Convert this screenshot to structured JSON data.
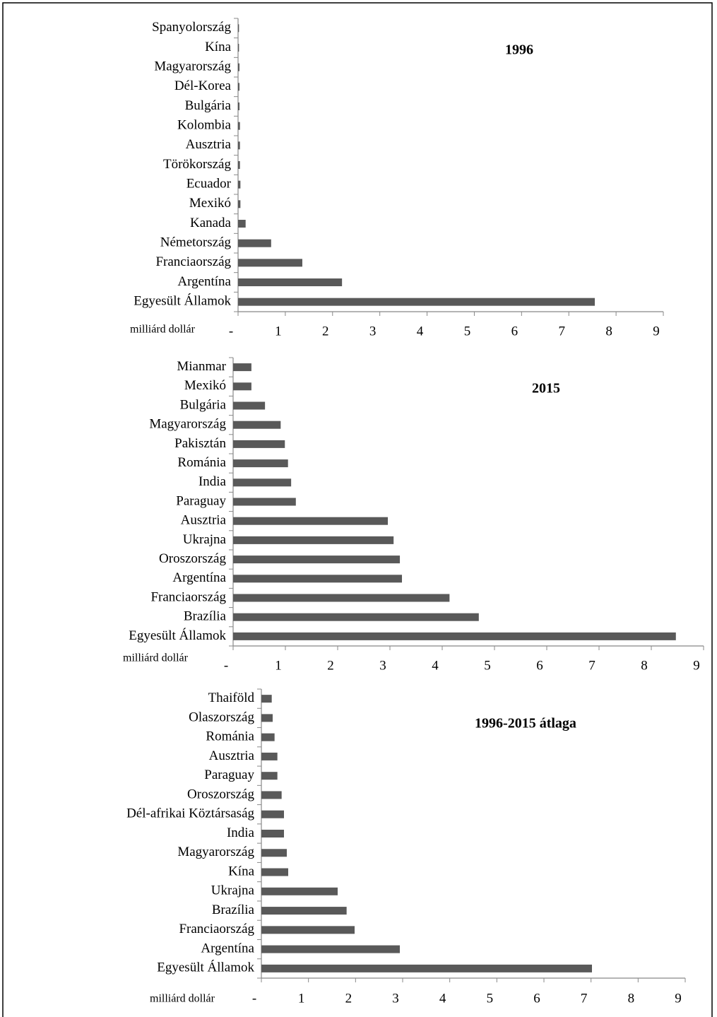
{
  "chart_data": [
    {
      "type": "bar",
      "orientation": "horizontal",
      "title": "1996",
      "x_label": "milliárd dollár",
      "color": "#595959",
      "categories": [
        "Spanyolország",
        "Kína",
        "Magyarország",
        "Dél-Korea",
        "Bulgária",
        "Kolombia",
        "Ausztria",
        "Törökország",
        "Ecuador",
        "Mexikó",
        "Kanada",
        "Németország",
        "Franciaország",
        "Argentína",
        "Egyesült Államok"
      ],
      "values": [
        0.02,
        0.02,
        0.03,
        0.03,
        0.03,
        0.04,
        0.04,
        0.04,
        0.05,
        0.05,
        0.16,
        0.7,
        1.36,
        2.2,
        7.55
      ],
      "xlim": [
        0,
        9
      ],
      "xticks": [
        {
          "value": 0,
          "label": "-"
        },
        1,
        2,
        3,
        4,
        5,
        6,
        7,
        8,
        9
      ]
    },
    {
      "type": "bar",
      "orientation": "horizontal",
      "title": "2015",
      "x_label": "milliárd dollár",
      "color": "#595959",
      "categories": [
        "Mianmar",
        "Mexikó",
        "Bulgária",
        "Magyarország",
        "Pakisztán",
        "Románia",
        "India",
        "Paraguay",
        "Ausztria",
        "Ukrajna",
        "Oroszország",
        "Argentína",
        "Franciaország",
        "Brazília",
        "Egyesült Államok"
      ],
      "values": [
        0.35,
        0.35,
        0.61,
        0.91,
        0.99,
        1.05,
        1.11,
        1.2,
        2.96,
        3.07,
        3.19,
        3.23,
        4.14,
        4.7,
        8.47
      ],
      "xlim": [
        0,
        9
      ],
      "xticks": [
        {
          "value": 0,
          "label": "-"
        },
        1,
        2,
        3,
        4,
        5,
        6,
        7,
        8,
        9
      ]
    },
    {
      "type": "bar",
      "orientation": "horizontal",
      "title": "1996-2015 átlaga",
      "x_label": "milliárd dollár",
      "color": "#595959",
      "categories": [
        "Thaiföld",
        "Olaszország",
        "Románia",
        "Ausztria",
        "Paraguay",
        "Oroszország",
        "Dél-afrikai Köztársaság",
        "India",
        "Magyarország",
        "Kína",
        "Ukrajna",
        "Brazília",
        "Franciaország",
        "Argentína",
        "Egyesült Államok"
      ],
      "values": [
        0.22,
        0.24,
        0.28,
        0.34,
        0.34,
        0.43,
        0.48,
        0.48,
        0.54,
        0.57,
        1.62,
        1.81,
        1.98,
        2.94,
        7.02
      ],
      "xlim": [
        0,
        9
      ],
      "xticks": [
        {
          "value": 0,
          "label": "-"
        },
        1,
        2,
        3,
        4,
        5,
        6,
        7,
        8,
        9
      ]
    }
  ]
}
